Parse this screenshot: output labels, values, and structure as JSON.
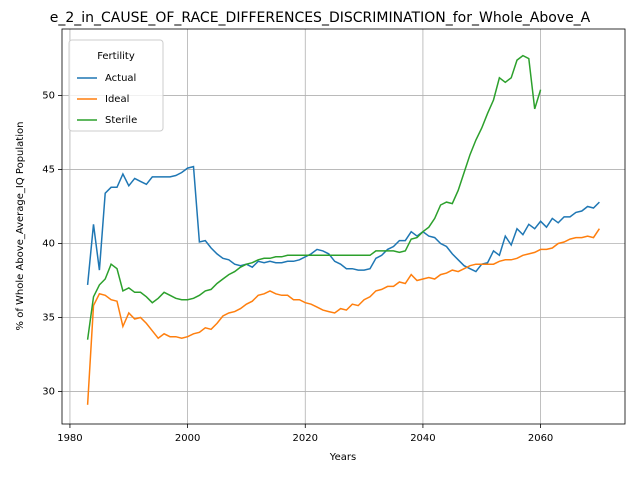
{
  "chart_data": {
    "type": "line",
    "title": "e_2_in_CAUSE_OF_RACE_DIFFERENCES_DISCRIMINATION_for_Whole_Above_A",
    "xlabel": "Years",
    "ylabel": "% of Whole Above_Average_IQ Population",
    "legend_title": "Fertility",
    "legend": "upper left",
    "grid": true,
    "x": [
      1983,
      1984,
      1985,
      1986,
      1987,
      1988,
      1989,
      1990,
      1991,
      1992,
      1993,
      1994,
      1995,
      1996,
      1997,
      1998,
      1999,
      2000,
      2001,
      2002,
      2003,
      2004,
      2005,
      2006,
      2007,
      2008,
      2009,
      2010,
      2011,
      2012,
      2013,
      2014,
      2015,
      2016,
      2017,
      2018,
      2019,
      2020,
      2021,
      2022,
      2023,
      2024,
      2025,
      2026,
      2027,
      2028,
      2029,
      2030,
      2031,
      2032,
      2033,
      2034,
      2035,
      2036,
      2037,
      2038,
      2039,
      2040,
      2041,
      2042,
      2043,
      2044,
      2045,
      2046,
      2047,
      2048,
      2049,
      2050,
      2051,
      2052,
      2053,
      2054,
      2055,
      2056,
      2057,
      2058,
      2059,
      2060,
      2061,
      2062,
      2063,
      2064,
      2065,
      2066,
      2067,
      2068,
      2069,
      2070
    ],
    "series": [
      {
        "name": "Actual",
        "color": "#1f77b4",
        "values": [
          37.2,
          41.3,
          38.2,
          43.4,
          43.8,
          43.8,
          44.7,
          43.9,
          44.4,
          44.2,
          44.0,
          44.5,
          44.5,
          44.5,
          44.5,
          44.6,
          44.8,
          45.1,
          45.2,
          40.1,
          40.2,
          39.7,
          39.3,
          39.0,
          38.9,
          38.6,
          38.5,
          38.6,
          38.4,
          38.8,
          38.7,
          38.8,
          38.7,
          38.7,
          38.8,
          38.8,
          38.9,
          39.1,
          39.3,
          39.6,
          39.5,
          39.3,
          38.8,
          38.6,
          38.3,
          38.3,
          38.2,
          38.2,
          38.3,
          39.0,
          39.2,
          39.6,
          39.8,
          40.2,
          40.2,
          40.8,
          40.5,
          40.8,
          40.5,
          40.4,
          40.0,
          39.8,
          39.3,
          38.9,
          38.5,
          38.3,
          38.1,
          38.6,
          38.7,
          39.5,
          39.2,
          40.5,
          39.9,
          41.0,
          40.6,
          41.3,
          41.0,
          41.5,
          41.1,
          41.7,
          41.4,
          41.8,
          41.8,
          42.1,
          42.2,
          42.5,
          42.4,
          42.8
        ]
      },
      {
        "name": "Ideal",
        "color": "#ff7f0e",
        "values": [
          29.1,
          35.8,
          36.6,
          36.5,
          36.2,
          36.1,
          34.4,
          35.3,
          34.9,
          35.0,
          34.6,
          34.1,
          33.6,
          33.9,
          33.7,
          33.7,
          33.6,
          33.7,
          33.9,
          34.0,
          34.3,
          34.2,
          34.6,
          35.1,
          35.3,
          35.4,
          35.6,
          35.9,
          36.1,
          36.5,
          36.6,
          36.8,
          36.6,
          36.5,
          36.5,
          36.2,
          36.2,
          36.0,
          35.9,
          35.7,
          35.5,
          35.4,
          35.3,
          35.6,
          35.5,
          35.9,
          35.8,
          36.2,
          36.4,
          36.8,
          36.9,
          37.1,
          37.1,
          37.4,
          37.3,
          37.9,
          37.5,
          37.6,
          37.7,
          37.6,
          37.9,
          38.0,
          38.2,
          38.1,
          38.3,
          38.5,
          38.6,
          38.6,
          38.6,
          38.6,
          38.8,
          38.9,
          38.9,
          39.0,
          39.2,
          39.3,
          39.4,
          39.6,
          39.6,
          39.7,
          40.0,
          40.1,
          40.3,
          40.4,
          40.4,
          40.5,
          40.4,
          41.0
        ]
      },
      {
        "name": "Sterile",
        "color": "#2ca02c",
        "values": [
          33.5,
          36.4,
          37.2,
          37.6,
          38.6,
          38.3,
          36.8,
          37.0,
          36.7,
          36.7,
          36.4,
          36.0,
          36.3,
          36.7,
          36.5,
          36.3,
          36.2,
          36.2,
          36.3,
          36.5,
          36.8,
          36.9,
          37.3,
          37.6,
          37.9,
          38.1,
          38.4,
          38.6,
          38.7,
          38.9,
          39.0,
          39.0,
          39.1,
          39.1,
          39.2,
          39.2,
          39.2,
          39.2,
          39.2,
          39.2,
          39.2,
          39.2,
          39.2,
          39.2,
          39.2,
          39.2,
          39.2,
          39.2,
          39.2,
          39.5,
          39.5,
          39.5,
          39.5,
          39.4,
          39.5,
          40.3,
          40.4,
          40.8,
          41.1,
          41.7,
          42.6,
          42.8,
          42.7,
          43.6,
          44.8,
          46.0,
          47.0,
          47.8,
          48.8,
          49.7,
          51.2,
          50.9,
          51.2,
          52.4,
          52.7,
          52.5,
          49.1,
          50.4,
          null,
          null,
          null,
          null,
          null,
          null,
          null,
          null,
          null,
          null
        ]
      }
    ],
    "xlim": [
      1978.65,
      2074.35
    ],
    "xticks": [
      1980,
      2000,
      2020,
      2040,
      2060
    ],
    "ylim": [
      27.8,
      54.5
    ],
    "yticks": [
      30,
      35,
      40,
      45,
      50
    ]
  }
}
